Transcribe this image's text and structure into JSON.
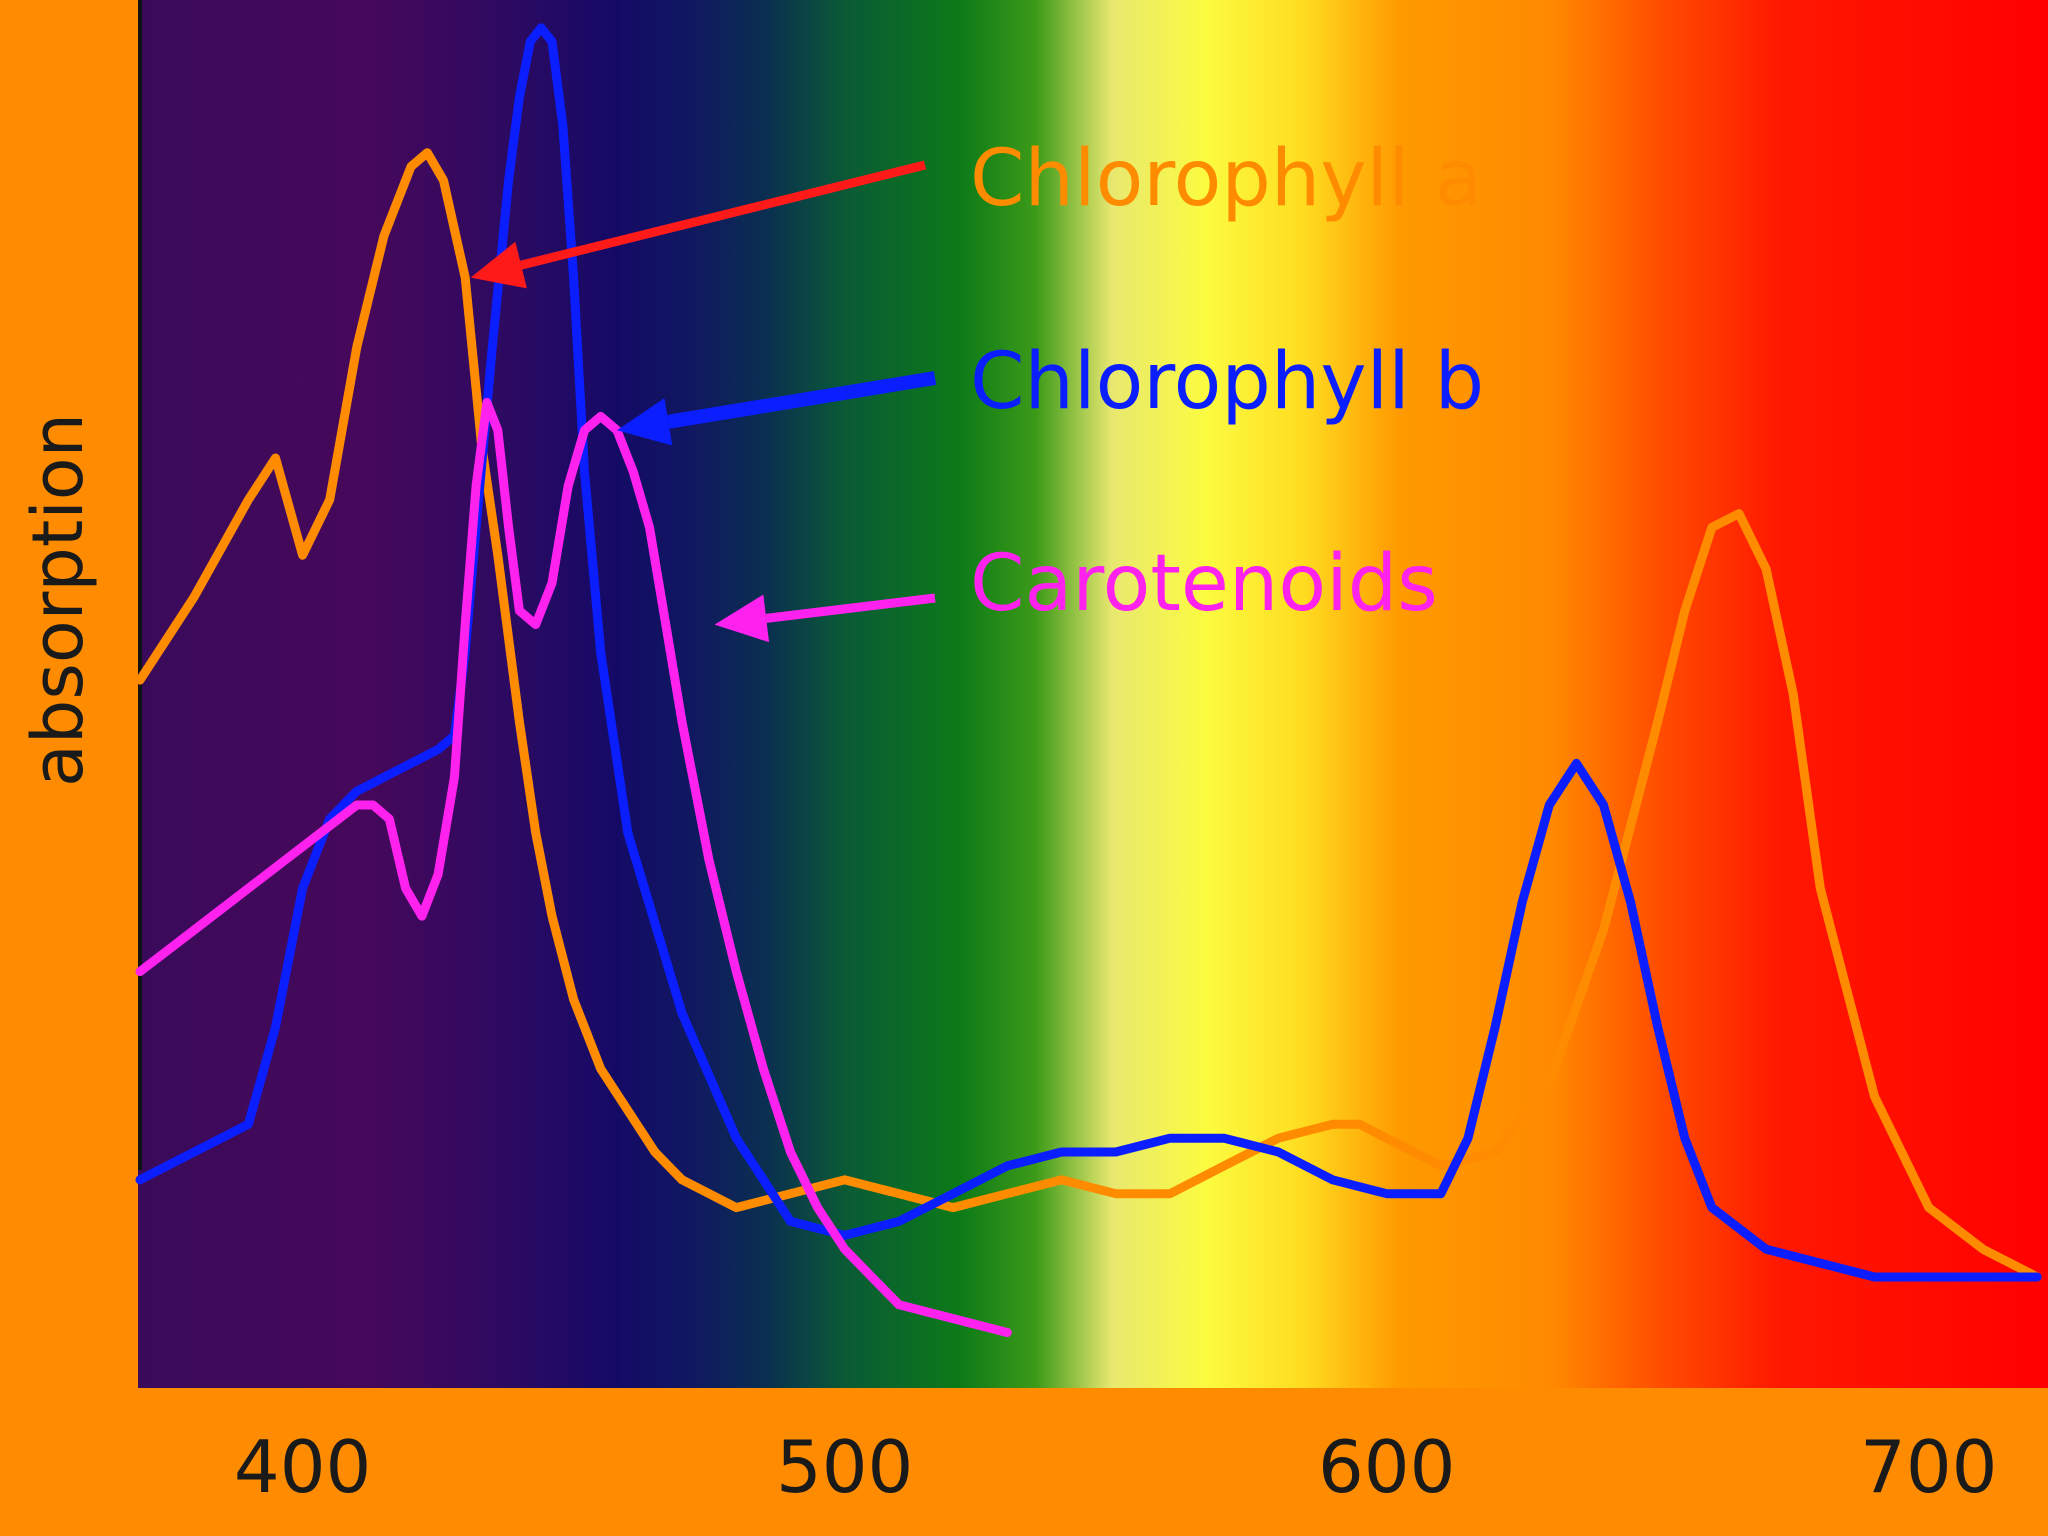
{
  "chart_data": {
    "type": "line",
    "title": "",
    "xlabel": "",
    "ylabel": "absorption",
    "xlim": [
      370,
      722
    ],
    "ylim": [
      0,
      1
    ],
    "x_ticks": [
      400,
      500,
      600,
      700
    ],
    "x_tick_labels": [
      "400",
      "500",
      "600",
      "700"
    ],
    "grid": false,
    "legend": "annotations with arrows",
    "background": "visible light spectrum gradient (violet to red)",
    "series": [
      {
        "name": "Chlorophyll a",
        "color": "#ff8c00",
        "x": [
          370,
          380,
          390,
          395,
          400,
          405,
          410,
          415,
          420,
          423,
          426,
          430,
          433,
          436,
          440,
          443,
          446,
          450,
          455,
          460,
          465,
          470,
          480,
          490,
          500,
          510,
          520,
          530,
          540,
          550,
          560,
          570,
          580,
          590,
          595,
          600,
          610,
          620,
          630,
          640,
          650,
          655,
          660,
          665,
          670,
          675,
          680,
          690,
          700,
          710,
          720
        ],
        "y": [
          0.51,
          0.57,
          0.64,
          0.67,
          0.6,
          0.64,
          0.75,
          0.83,
          0.88,
          0.89,
          0.87,
          0.8,
          0.68,
          0.6,
          0.48,
          0.4,
          0.34,
          0.28,
          0.23,
          0.2,
          0.17,
          0.15,
          0.13,
          0.14,
          0.15,
          0.14,
          0.13,
          0.14,
          0.15,
          0.14,
          0.14,
          0.16,
          0.18,
          0.19,
          0.19,
          0.18,
          0.16,
          0.17,
          0.22,
          0.33,
          0.48,
          0.56,
          0.62,
          0.63,
          0.59,
          0.5,
          0.36,
          0.21,
          0.13,
          0.1,
          0.08
        ]
      },
      {
        "name": "Chlorophyll b",
        "color": "#0a1eff",
        "x": [
          370,
          380,
          390,
          395,
          400,
          405,
          410,
          415,
          420,
          425,
          428,
          430,
          432,
          435,
          438,
          440,
          442,
          444,
          446,
          448,
          450,
          452,
          455,
          460,
          470,
          480,
          490,
          500,
          510,
          520,
          530,
          540,
          550,
          560,
          570,
          580,
          590,
          600,
          610,
          615,
          620,
          625,
          630,
          635,
          640,
          645,
          650,
          655,
          660,
          670,
          680,
          690,
          700,
          710,
          720
        ],
        "y": [
          0.15,
          0.17,
          0.19,
          0.26,
          0.36,
          0.41,
          0.43,
          0.44,
          0.45,
          0.46,
          0.47,
          0.53,
          0.62,
          0.75,
          0.87,
          0.93,
          0.97,
          0.98,
          0.97,
          0.91,
          0.8,
          0.66,
          0.53,
          0.4,
          0.27,
          0.18,
          0.12,
          0.11,
          0.12,
          0.14,
          0.16,
          0.17,
          0.17,
          0.18,
          0.18,
          0.17,
          0.15,
          0.14,
          0.14,
          0.18,
          0.26,
          0.35,
          0.42,
          0.45,
          0.42,
          0.35,
          0.26,
          0.18,
          0.13,
          0.1,
          0.09,
          0.08,
          0.08,
          0.08,
          0.08
        ]
      },
      {
        "name": "Carotenoids",
        "color": "#ff22ee",
        "x": [
          370,
          380,
          390,
          400,
          410,
          413,
          416,
          419,
          422,
          425,
          428,
          430,
          432,
          434,
          436,
          438,
          440,
          443,
          446,
          449,
          452,
          455,
          458,
          461,
          464,
          467,
          470,
          475,
          480,
          485,
          490,
          495,
          500,
          505,
          510,
          520,
          530
        ],
        "y": [
          0.3,
          0.33,
          0.36,
          0.39,
          0.42,
          0.42,
          0.41,
          0.36,
          0.34,
          0.37,
          0.44,
          0.55,
          0.65,
          0.71,
          0.69,
          0.62,
          0.56,
          0.55,
          0.58,
          0.65,
          0.69,
          0.7,
          0.69,
          0.66,
          0.62,
          0.55,
          0.48,
          0.38,
          0.3,
          0.23,
          0.17,
          0.13,
          0.1,
          0.08,
          0.06,
          0.05,
          0.04
        ]
      }
    ],
    "annotations": [
      {
        "text": "Chlorophyll a",
        "color": "#ff8c00",
        "arrow_color": "#ff1a1a",
        "arrow_tip": [
          431,
          0.8
        ]
      },
      {
        "text": "Chlorophyll b",
        "color": "#0a1eff",
        "arrow_color": "#0a1eff",
        "arrow_tip": [
          458,
          0.69
        ]
      },
      {
        "text": "Carotenoids",
        "color": "#ff22ee",
        "arrow_color": "#ff22ee",
        "arrow_tip": [
          476,
          0.55
        ]
      }
    ]
  }
}
